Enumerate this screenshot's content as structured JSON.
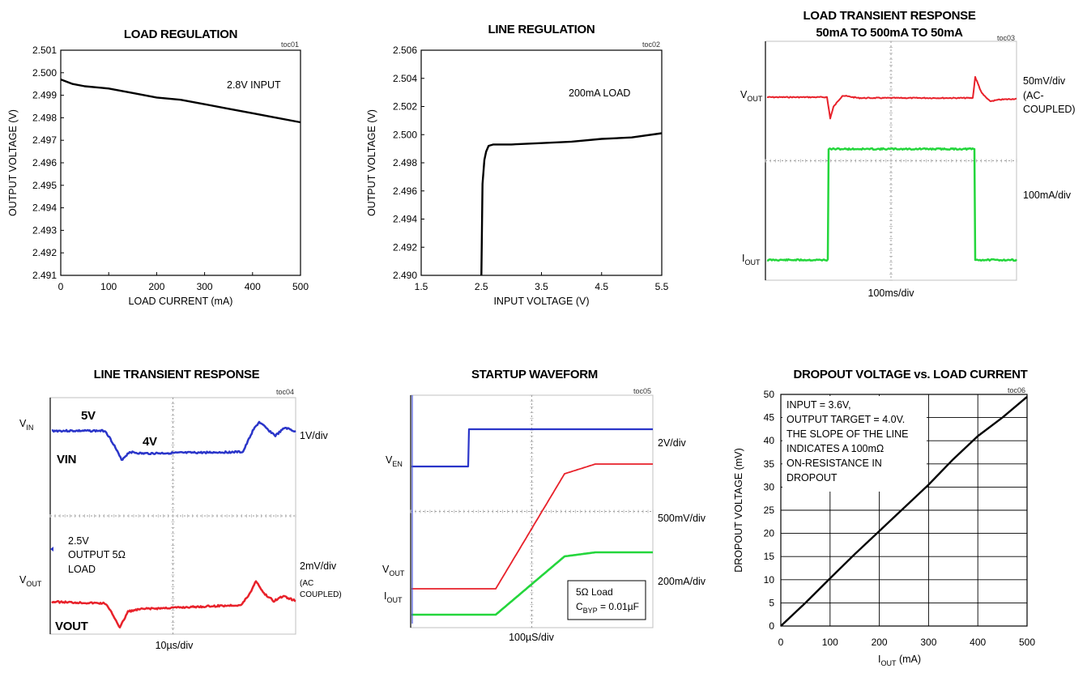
{
  "chart_data": [
    {
      "id": "toc01",
      "type": "line",
      "title": "LOAD REGULATION",
      "tag": "toc01",
      "xlabel": "LOAD CURRENT (mA)",
      "ylabel": "OUTPUT VOLTAGE (V)",
      "xlim": [
        0,
        500
      ],
      "ylim": [
        2.491,
        2.501
      ],
      "xticks": [
        "0",
        "100",
        "200",
        "300",
        "400",
        "500"
      ],
      "yticks": [
        "2.491",
        "2.492",
        "2.493",
        "2.494",
        "2.495",
        "2.496",
        "2.497",
        "2.498",
        "2.499",
        "2.500",
        "2.501"
      ],
      "annotation": "2.8V INPUT",
      "series": [
        {
          "x": [
            0,
            25,
            50,
            100,
            150,
            200,
            250,
            300,
            350,
            400,
            450,
            500
          ],
          "y": [
            2.4997,
            2.4995,
            2.4994,
            2.4993,
            2.4991,
            2.4989,
            2.4988,
            2.4986,
            2.4984,
            2.4982,
            2.498,
            2.4978
          ]
        }
      ]
    },
    {
      "id": "toc02",
      "type": "line",
      "title": "LINE REGULATION",
      "tag": "toc02",
      "xlabel": "INPUT VOLTAGE (V)",
      "ylabel": "OUTPUT VOLTAGE (V)",
      "xlim": [
        1.5,
        5.5
      ],
      "ylim": [
        2.49,
        2.506
      ],
      "xticks": [
        "1.5",
        "2.5",
        "3.5",
        "4.5",
        "5.5"
      ],
      "yticks": [
        "2.490",
        "2.492",
        "2.494",
        "2.496",
        "2.498",
        "2.500",
        "2.502",
        "2.504",
        "2.506"
      ],
      "annotation": "200mA LOAD",
      "series": [
        {
          "x": [
            2.5,
            2.52,
            2.55,
            2.58,
            2.62,
            2.7,
            3.0,
            3.5,
            4.0,
            4.5,
            5.0,
            5.5
          ],
          "y": [
            2.49,
            2.4965,
            2.4982,
            2.4988,
            2.4992,
            2.4993,
            2.4993,
            2.4994,
            2.4995,
            2.4997,
            2.4998,
            2.5001
          ]
        }
      ]
    },
    {
      "id": "toc03",
      "type": "line",
      "title": [
        "LOAD TRANSIENT RESPONSE",
        "50mA TO 500mA TO 50mA"
      ],
      "tag": "toc03",
      "xlabel": "100ms/div",
      "left_labels": [
        {
          "main": "V",
          "sub": "OUT"
        },
        {
          "main": "I",
          "sub": "OUT"
        }
      ],
      "right_labels": [
        "50mV/div",
        "(AC-",
        "COUPLED)",
        "100mA/div"
      ],
      "series": [
        {
          "color": "#e8212a"
        },
        {
          "color": "#24d63c"
        }
      ]
    },
    {
      "id": "toc04",
      "type": "line",
      "title": "LINE TRANSIENT RESPONSE",
      "tag": "toc04",
      "xlabel": "10µs/div",
      "left_labels": [
        {
          "main": "V",
          "sub": "IN"
        },
        {
          "main": "V",
          "sub": "OUT"
        }
      ],
      "trace_labels": [
        "5V",
        "4V",
        "VIN",
        "VOUT"
      ],
      "note": [
        "2.5V",
        "OUTPUT 5Ω",
        "LOAD"
      ],
      "right_labels": [
        "1V/div",
        "2mV/div",
        "(AC",
        "COUPLED)"
      ],
      "series": [
        {
          "color": "#2a35c9"
        },
        {
          "color": "#e8212a"
        }
      ]
    },
    {
      "id": "toc05",
      "type": "line",
      "title": "STARTUP WAVEFORM",
      "tag": "toc05",
      "xlabel": "100µS/div",
      "left_labels": [
        {
          "main": "V",
          "sub": "EN"
        },
        {
          "main": "V",
          "sub": "OUT"
        },
        {
          "main": "I",
          "sub": "OUT"
        }
      ],
      "right_labels": [
        "2V/div",
        "500mV/div",
        "200mA/div"
      ],
      "legend_box": {
        "line1": "5Ω Load",
        "line2_main": "C",
        "line2_sub": "BYP",
        "line2_rest": " = 0.01µF"
      },
      "series": [
        {
          "color": "#2a35c9"
        },
        {
          "color": "#e8212a"
        },
        {
          "color": "#24d63c"
        }
      ]
    },
    {
      "id": "toc06",
      "type": "line",
      "title": "DROPOUT VOLTAGE vs. LOAD CURRENT",
      "tag": "toc06",
      "xlabel": {
        "main": "I",
        "sub": "OUT",
        "rest": " (mA)"
      },
      "ylabel": "DROPOUT VOLTAGE (mV)",
      "xlim": [
        0,
        500
      ],
      "ylim": [
        0,
        50
      ],
      "xticks": [
        "0",
        "100",
        "200",
        "300",
        "400",
        "500"
      ],
      "yticks": [
        "0",
        "5",
        "10",
        "15",
        "20",
        "25",
        "30",
        "35",
        "40",
        "45",
        "50"
      ],
      "annotation": [
        "INPUT = 3.6V,",
        "OUTPUT TARGET = 4.0V.",
        "THE SLOPE OF THE LINE",
        "INDICATES A 100mΩ",
        "ON-RESISTANCE IN",
        "DROPOUT"
      ],
      "series": [
        {
          "x": [
            0,
            50,
            100,
            150,
            200,
            250,
            300,
            350,
            400,
            450,
            500
          ],
          "y": [
            0,
            5,
            10.3,
            15.5,
            20.5,
            25.5,
            30.5,
            36,
            41,
            45,
            49.5
          ]
        }
      ]
    }
  ]
}
